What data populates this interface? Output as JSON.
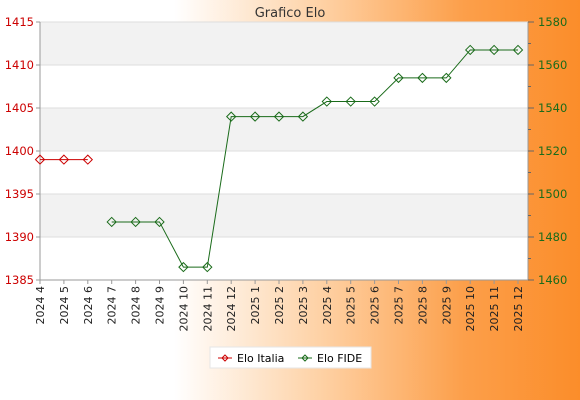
{
  "chart_data": {
    "type": "line",
    "title": "Grafico Elo",
    "categories": [
      "2024 4",
      "2024 5",
      "2024 6",
      "2024 7",
      "2024 8",
      "2024 9",
      "2024 10",
      "2024 11",
      "2024 12",
      "2025 1",
      "2025 2",
      "2025 3",
      "2025 4",
      "2025 5",
      "2025 6",
      "2025 7",
      "2025 8",
      "2025 9",
      "2025 10",
      "2025 11",
      "2025 12"
    ],
    "y_left": {
      "ticks": [
        1385,
        1390,
        1395,
        1400,
        1405,
        1410,
        1415
      ],
      "ylim": [
        1385,
        1415
      ],
      "color": "#cc0000"
    },
    "y_right": {
      "ticks": [
        1460,
        1480,
        1500,
        1520,
        1540,
        1560,
        1580
      ],
      "ylim": [
        1460,
        1580
      ],
      "color": "#1a6b1a"
    },
    "grid": true,
    "legend_position": "bottom",
    "series": [
      {
        "name": "Elo Italia",
        "axis": "left",
        "color": "#cc0000",
        "values": [
          1399,
          1399,
          1399,
          null,
          null,
          null,
          null,
          null,
          null,
          null,
          null,
          null,
          null,
          null,
          null,
          null,
          null,
          null,
          null,
          null,
          null
        ]
      },
      {
        "name": "Elo FIDE",
        "axis": "right",
        "color": "#1a6b1a",
        "values": [
          null,
          null,
          null,
          1487,
          1487,
          1487,
          1466,
          1466,
          1536,
          1536,
          1536,
          1536,
          1543,
          1543,
          1543,
          1554,
          1554,
          1554,
          1567,
          1567,
          1567
        ]
      }
    ]
  }
}
